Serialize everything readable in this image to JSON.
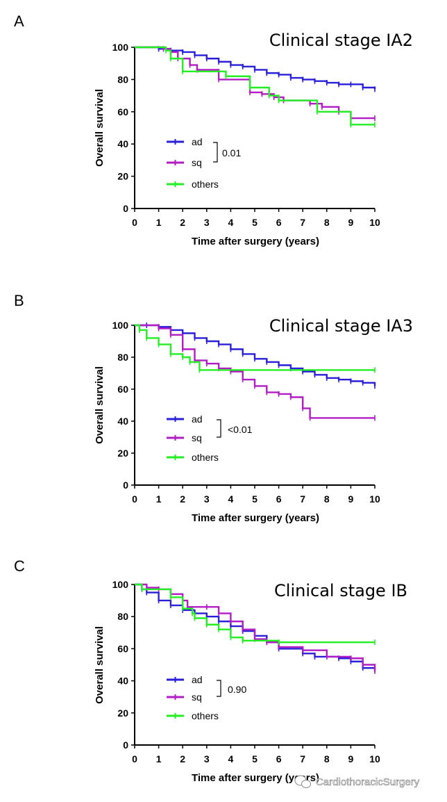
{
  "colors": {
    "ad": "#2a1fd8",
    "sq": "#b21cc4",
    "others": "#22ee22"
  },
  "watermark": {
    "text": "CardiothoracicSurgery",
    "icon": "wechat-icon"
  },
  "chart_data": [
    {
      "panel": "A",
      "type": "line",
      "title": "Clinical stage IA2",
      "xlabel": "Time after surgery (years)",
      "ylabel": "Overall survival",
      "xlim": [
        0,
        10
      ],
      "ylim": [
        0,
        100
      ],
      "xticks": [
        0,
        1,
        2,
        3,
        4,
        5,
        6,
        7,
        8,
        9,
        10
      ],
      "yticks": [
        0,
        20,
        40,
        60,
        80,
        100
      ],
      "p_value": "0.01",
      "legend": [
        "ad",
        "sq",
        "others"
      ],
      "series": [
        {
          "name": "ad",
          "step": true,
          "x": [
            0,
            1,
            1.5,
            2,
            2.5,
            3,
            3.5,
            4,
            4.5,
            5,
            5.5,
            6,
            6.5,
            7,
            7.5,
            8,
            8.5,
            9,
            9.5,
            10
          ],
          "y": [
            100,
            99,
            98,
            97,
            95,
            93,
            91,
            89,
            88,
            86,
            84,
            83,
            81,
            80,
            79,
            78,
            77,
            77,
            75,
            74
          ]
        },
        {
          "name": "sq",
          "step": true,
          "x": [
            0,
            1.2,
            1.5,
            1.8,
            2.3,
            2.6,
            3.5,
            4.8,
            5.3,
            5.8,
            6.2,
            7.3,
            7.8,
            8.5,
            9,
            10
          ],
          "y": [
            100,
            99,
            97,
            93,
            89,
            86,
            80,
            72,
            71,
            69,
            67,
            65,
            63,
            60,
            56,
            56
          ]
        },
        {
          "name": "others",
          "step": true,
          "x": [
            0,
            1.3,
            1.5,
            2,
            3.8,
            4.8,
            5.6,
            6,
            7.6,
            9,
            10
          ],
          "y": [
            100,
            98,
            93,
            85,
            82,
            75,
            70,
            67,
            60,
            52,
            52
          ]
        }
      ]
    },
    {
      "panel": "B",
      "type": "line",
      "title": "Clinical stage IA3",
      "xlabel": "Time after surgery (years)",
      "ylabel": "Overall survival",
      "xlim": [
        0,
        10
      ],
      "ylim": [
        0,
        100
      ],
      "xticks": [
        0,
        1,
        2,
        3,
        4,
        5,
        6,
        7,
        8,
        9,
        10
      ],
      "yticks": [
        0,
        20,
        40,
        60,
        80,
        100
      ],
      "p_value": "<0.01",
      "legend": [
        "ad",
        "sq",
        "others"
      ],
      "series": [
        {
          "name": "ad",
          "step": true,
          "x": [
            0,
            0.5,
            1,
            1.5,
            2,
            2.5,
            3,
            3.5,
            4,
            4.5,
            5,
            5.5,
            6,
            6.5,
            7,
            7.5,
            8,
            8.5,
            9,
            9.5,
            10
          ],
          "y": [
            100,
            100,
            99,
            97,
            95,
            92,
            90,
            88,
            85,
            82,
            79,
            77,
            75,
            73,
            71,
            69,
            67,
            66,
            65,
            64,
            62
          ]
        },
        {
          "name": "sq",
          "step": true,
          "x": [
            0,
            1,
            1.5,
            2,
            2.5,
            3,
            3.5,
            4,
            4.5,
            5,
            5.5,
            6,
            6.5,
            7,
            7.3,
            10
          ],
          "y": [
            100,
            98,
            94,
            85,
            78,
            76,
            73,
            71,
            66,
            62,
            58,
            57,
            55,
            48,
            42,
            42
          ]
        },
        {
          "name": "others",
          "step": true,
          "x": [
            0,
            0.2,
            0.5,
            1,
            1.5,
            2,
            2.3,
            2.7,
            10
          ],
          "y": [
            100,
            97,
            92,
            88,
            82,
            80,
            77,
            72,
            72
          ]
        }
      ]
    },
    {
      "panel": "C",
      "type": "line",
      "title": "Clinical stage IB",
      "xlabel": "Time after surgery (years)",
      "ylabel": "Overall survival",
      "xlim": [
        0,
        10
      ],
      "ylim": [
        0,
        100
      ],
      "xticks": [
        0,
        1,
        2,
        3,
        4,
        5,
        6,
        7,
        8,
        9,
        10
      ],
      "yticks": [
        0,
        20,
        40,
        60,
        80,
        100
      ],
      "p_value": "0.90",
      "legend": [
        "ad",
        "sq",
        "others"
      ],
      "series": [
        {
          "name": "ad",
          "step": true,
          "x": [
            0,
            0.3,
            0.5,
            1,
            1.5,
            2,
            2.5,
            3,
            3.5,
            4,
            4.5,
            5,
            5.5,
            6,
            7,
            7.5,
            8,
            8.5,
            9,
            9.5,
            10
          ],
          "y": [
            100,
            97,
            95,
            90,
            87,
            84,
            82,
            80,
            77,
            74,
            71,
            68,
            64,
            60,
            57,
            55,
            55,
            54,
            52,
            48,
            47
          ]
        },
        {
          "name": "sq",
          "step": true,
          "x": [
            0,
            0.5,
            1,
            1.5,
            2,
            2.2,
            3,
            3.5,
            4,
            4.5,
            5,
            5.5,
            6,
            7,
            8,
            9,
            9.5,
            10
          ],
          "y": [
            100,
            98,
            97,
            94,
            90,
            86,
            86,
            82,
            77,
            72,
            66,
            64,
            61,
            59,
            55,
            54,
            50,
            46
          ]
        },
        {
          "name": "others",
          "step": true,
          "x": [
            0,
            0.3,
            1.5,
            2,
            2.4,
            2.5,
            3,
            3.5,
            4,
            4.5,
            6,
            10
          ],
          "y": [
            100,
            97,
            92,
            85,
            82,
            79,
            75,
            72,
            67,
            65,
            64,
            64
          ]
        }
      ]
    }
  ]
}
